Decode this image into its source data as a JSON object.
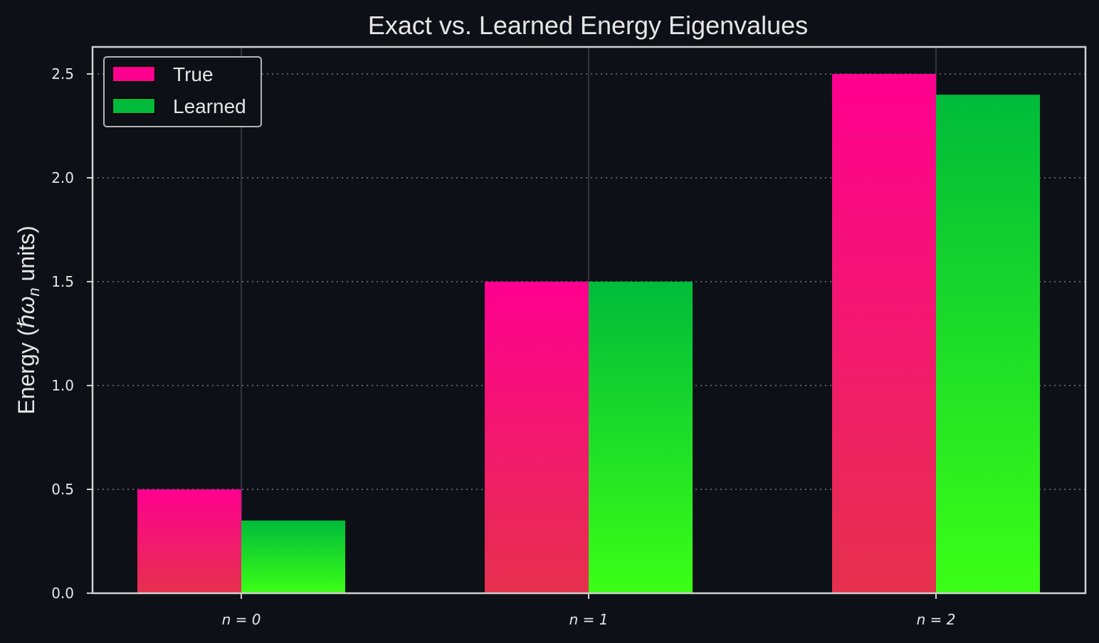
{
  "chart_data": {
    "type": "bar",
    "title": "Exact vs. Learned Energy Eigenvalues",
    "ylabel": "Energy (ℏω_n units)",
    "xlabel": "",
    "categories": [
      "n = 0",
      "n = 1",
      "n = 2"
    ],
    "series": [
      {
        "name": "True",
        "values": [
          0.5,
          1.5,
          2.5
        ],
        "color_top": "#ff0090",
        "color_bottom": "#e6304d"
      },
      {
        "name": "Learned",
        "values": [
          0.35,
          1.5,
          2.4
        ],
        "color_top": "#00bb3a",
        "color_bottom": "#3cff16"
      }
    ],
    "ylim": [
      0,
      2.63
    ],
    "yticks": [
      "0.0",
      "0.5",
      "1.0",
      "1.5",
      "2.0",
      "2.5"
    ],
    "grid": true,
    "legend_position": "top-left",
    "background": "#0d1117",
    "axis_color": "#d0d0d0"
  }
}
